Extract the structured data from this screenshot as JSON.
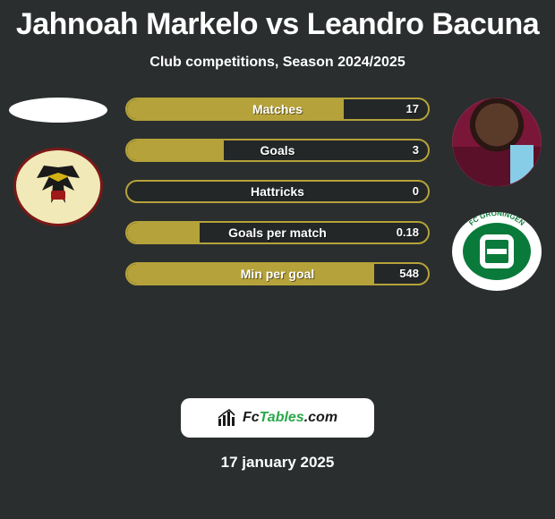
{
  "title": "Jahnoah Markelo vs Leandro Bacuna",
  "subtitle": "Club competitions, Season 2024/2025",
  "date": "17 january 2025",
  "colors": {
    "page_bg": "#2a2e2e",
    "bar_border": "#b5a23a",
    "bar_fill": "#b5a23a",
    "text": "#ffffff"
  },
  "left": {
    "placeholder": "player-silhouette",
    "club": "Go Ahead Eagles Deventer",
    "club_colors": {
      "shield": "#f2e9b8",
      "border": "#7a1818",
      "eagle_body": "#1a1a1a",
      "eagle_accent": "#d4b014"
    }
  },
  "right": {
    "player": "Leandro Bacuna",
    "kit_colors": {
      "shirt": "#7a1638",
      "sleeve": "#88cde8"
    },
    "club": "FC Groningen",
    "club_colors": {
      "ring": "#ffffff",
      "core": "#0a7a3a"
    }
  },
  "stats": [
    {
      "label": "Matches",
      "value": "17",
      "fill_pct": 72
    },
    {
      "label": "Goals",
      "value": "3",
      "fill_pct": 32
    },
    {
      "label": "Hattricks",
      "value": "0",
      "fill_pct": 0
    },
    {
      "label": "Goals per match",
      "value": "0.18",
      "fill_pct": 24
    },
    {
      "label": "Min per goal",
      "value": "548",
      "fill_pct": 82
    }
  ],
  "brand": {
    "text_pre": "Fc",
    "text_main": "Tables",
    "text_suffix": ".com"
  }
}
